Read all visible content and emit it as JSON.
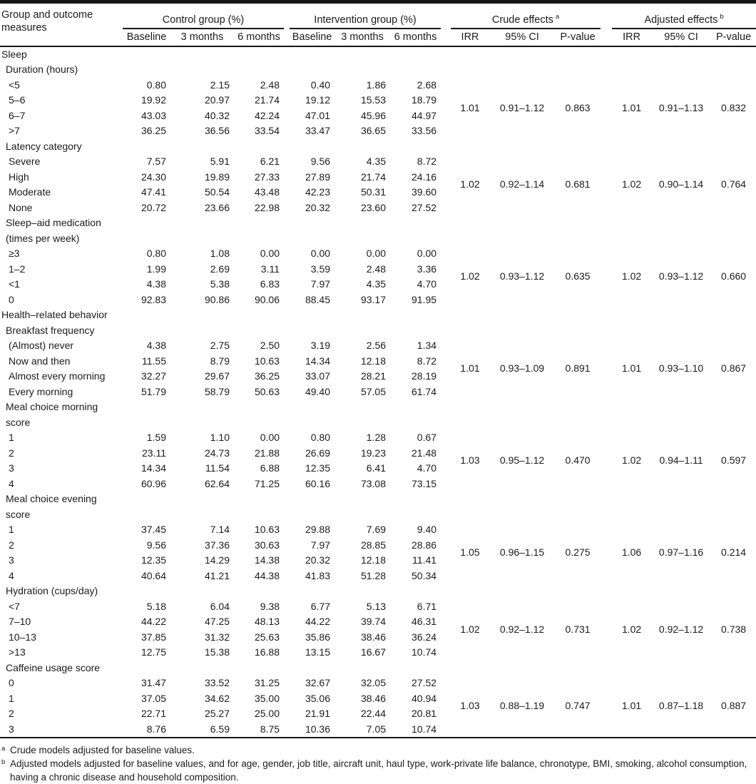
{
  "table": {
    "stub_header": "Group and outcome measures",
    "column_groups": [
      {
        "label": "Control group (%)",
        "columns": [
          "Baseline",
          "3 months",
          "6 months"
        ]
      },
      {
        "label": "Intervention group (%)",
        "columns": [
          "Baseline",
          "3 months",
          "6 months"
        ]
      },
      {
        "label": "Crude effects",
        "footnote_marker": "a",
        "columns": [
          "IRR",
          "95% CI",
          "P-value"
        ]
      },
      {
        "label": "Adjusted effects",
        "footnote_marker": "b",
        "columns": [
          "IRR",
          "95% CI",
          "P-value"
        ]
      }
    ],
    "sections": [
      {
        "title": "Sleep",
        "subgroups": [
          {
            "label": "Duration (hours)",
            "rows": [
              {
                "label": "<5",
                "control": [
                  "0.80",
                  "2.15",
                  "2.48"
                ],
                "intervention": [
                  "0.40",
                  "1.86",
                  "2.68"
                ]
              },
              {
                "label": "5–6",
                "control": [
                  "19.92",
                  "20.97",
                  "21.74"
                ],
                "intervention": [
                  "19.12",
                  "15.53",
                  "18.79"
                ]
              },
              {
                "label": "6–7",
                "control": [
                  "43.03",
                  "40.32",
                  "42.24"
                ],
                "intervention": [
                  "47.01",
                  "45.96",
                  "44.97"
                ]
              },
              {
                "label": ">7",
                "control": [
                  "36.25",
                  "36.56",
                  "33.54"
                ],
                "intervention": [
                  "33.47",
                  "36.65",
                  "33.56"
                ]
              }
            ],
            "crude": {
              "irr": "1.01",
              "ci": "0.91–1.12",
              "p": "0.863"
            },
            "adjusted": {
              "irr": "1.01",
              "ci": "0.91–1.13",
              "p": "0.832"
            }
          },
          {
            "label": "Latency category",
            "rows": [
              {
                "label": "Severe",
                "control": [
                  "7.57",
                  "5.91",
                  "6.21"
                ],
                "intervention": [
                  "9.56",
                  "4.35",
                  "8.72"
                ]
              },
              {
                "label": "High",
                "control": [
                  "24.30",
                  "19.89",
                  "27.33"
                ],
                "intervention": [
                  "27.89",
                  "21.74",
                  "24.16"
                ]
              },
              {
                "label": "Moderate",
                "control": [
                  "47.41",
                  "50.54",
                  "43.48"
                ],
                "intervention": [
                  "42.23",
                  "50.31",
                  "39.60"
                ]
              },
              {
                "label": "None",
                "control": [
                  "20.72",
                  "23.66",
                  "22.98"
                ],
                "intervention": [
                  "20.32",
                  "23.60",
                  "27.52"
                ]
              }
            ],
            "crude": {
              "irr": "1.02",
              "ci": "0.92–1.14",
              "p": "0.681"
            },
            "adjusted": {
              "irr": "1.02",
              "ci": "0.90–1.14",
              "p": "0.764"
            }
          },
          {
            "label": "Sleep–aid medication (times per week)",
            "rows": [
              {
                "label": "≥3",
                "control": [
                  "0.80",
                  "1.08",
                  "0.00"
                ],
                "intervention": [
                  "0.00",
                  "0.00",
                  "0.00"
                ]
              },
              {
                "label": "1–2",
                "control": [
                  "1.99",
                  "2.69",
                  "3.11"
                ],
                "intervention": [
                  "3.59",
                  "2.48",
                  "3.36"
                ]
              },
              {
                "label": "<1",
                "control": [
                  "4.38",
                  "5.38",
                  "6.83"
                ],
                "intervention": [
                  "7.97",
                  "4.35",
                  "4.70"
                ]
              },
              {
                "label": "0",
                "control": [
                  "92.83",
                  "90.86",
                  "90.06"
                ],
                "intervention": [
                  "88.45",
                  "93.17",
                  "91.95"
                ]
              }
            ],
            "crude": {
              "irr": "1.02",
              "ci": "0.93–1.12",
              "p": "0.635"
            },
            "adjusted": {
              "irr": "1.02",
              "ci": "0.93–1.12",
              "p": "0.660"
            }
          }
        ]
      },
      {
        "title": "Health–related behavior",
        "subgroups": [
          {
            "label": "Breakfast frequency",
            "rows": [
              {
                "label": "(Almost) never",
                "control": [
                  "4.38",
                  "2.75",
                  "2.50"
                ],
                "intervention": [
                  "3.19",
                  "2.56",
                  "1.34"
                ]
              },
              {
                "label": "Now and then",
                "control": [
                  "11.55",
                  "8.79",
                  "10.63"
                ],
                "intervention": [
                  "14.34",
                  "12.18",
                  "8.72"
                ]
              },
              {
                "label": "Almost every morning",
                "control": [
                  "32.27",
                  "29.67",
                  "36.25"
                ],
                "intervention": [
                  "33.07",
                  "28.21",
                  "28.19"
                ]
              },
              {
                "label": "Every morning",
                "control": [
                  "51.79",
                  "58.79",
                  "50.63"
                ],
                "intervention": [
                  "49.40",
                  "57.05",
                  "61.74"
                ]
              }
            ],
            "crude": {
              "irr": "1.01",
              "ci": "0.93–1.09",
              "p": "0.891"
            },
            "adjusted": {
              "irr": "1.01",
              "ci": "0.93–1.10",
              "p": "0.867"
            }
          },
          {
            "label": "Meal choice morning score",
            "rows": [
              {
                "label": "1",
                "control": [
                  "1.59",
                  "1.10",
                  "0.00"
                ],
                "intervention": [
                  "0.80",
                  "1.28",
                  "0.67"
                ]
              },
              {
                "label": "2",
                "control": [
                  "23.11",
                  "24.73",
                  "21.88"
                ],
                "intervention": [
                  "26.69",
                  "19.23",
                  "21.48"
                ]
              },
              {
                "label": "3",
                "control": [
                  "14.34",
                  "11.54",
                  "6.88"
                ],
                "intervention": [
                  "12.35",
                  "6.41",
                  "4.70"
                ]
              },
              {
                "label": "4",
                "control": [
                  "60.96",
                  "62.64",
                  "71.25"
                ],
                "intervention": [
                  "60.16",
                  "73.08",
                  "73.15"
                ]
              }
            ],
            "crude": {
              "irr": "1.03",
              "ci": "0.95–1.12",
              "p": "0.470"
            },
            "adjusted": {
              "irr": "1.02",
              "ci": "0.94–1.11",
              "p": "0.597"
            }
          },
          {
            "label": "Meal choice evening score",
            "rows": [
              {
                "label": "1",
                "control": [
                  "37.45",
                  "7.14",
                  "10.63"
                ],
                "intervention": [
                  "29.88",
                  "7.69",
                  "9.40"
                ]
              },
              {
                "label": "2",
                "control": [
                  "9.56",
                  "37.36",
                  "30.63"
                ],
                "intervention": [
                  "7.97",
                  "28.85",
                  "28.86"
                ]
              },
              {
                "label": "3",
                "control": [
                  "12.35",
                  "14.29",
                  "14.38"
                ],
                "intervention": [
                  "20.32",
                  "12.18",
                  "11.41"
                ]
              },
              {
                "label": "4",
                "control": [
                  "40.64",
                  "41.21",
                  "44.38"
                ],
                "intervention": [
                  "41.83",
                  "51.28",
                  "50.34"
                ]
              }
            ],
            "crude": {
              "irr": "1.05",
              "ci": "0.96–1.15",
              "p": "0.275"
            },
            "adjusted": {
              "irr": "1.06",
              "ci": "0.97–1.16",
              "p": "0.214"
            }
          },
          {
            "label": "Hydration (cups/day)",
            "rows": [
              {
                "label": "<7",
                "control": [
                  "5.18",
                  "6.04",
                  "9.38"
                ],
                "intervention": [
                  "6.77",
                  "5.13",
                  "6.71"
                ]
              },
              {
                "label": "7–10",
                "control": [
                  "44.22",
                  "47.25",
                  "48.13"
                ],
                "intervention": [
                  "44.22",
                  "39.74",
                  "46.31"
                ]
              },
              {
                "label": "10–13",
                "control": [
                  "37.85",
                  "31.32",
                  "25.63"
                ],
                "intervention": [
                  "35.86",
                  "38.46",
                  "36.24"
                ]
              },
              {
                "label": ">13",
                "control": [
                  "12.75",
                  "15.38",
                  "16.88"
                ],
                "intervention": [
                  "13.15",
                  "16.67",
                  "10.74"
                ]
              }
            ],
            "crude": {
              "irr": "1.02",
              "ci": "0.92–1.12",
              "p": "0.731"
            },
            "adjusted": {
              "irr": "1.02",
              "ci": "0.92–1.12",
              "p": "0.738"
            }
          },
          {
            "label": "Caffeine usage score",
            "rows": [
              {
                "label": "0",
                "control": [
                  "31.47",
                  "33.52",
                  "31.25"
                ],
                "intervention": [
                  "32.67",
                  "32.05",
                  "27.52"
                ]
              },
              {
                "label": "1",
                "control": [
                  "37.05",
                  "34.62",
                  "35.00"
                ],
                "intervention": [
                  "35.06",
                  "38.46",
                  "40.94"
                ]
              },
              {
                "label": "2",
                "control": [
                  "22.71",
                  "25.27",
                  "25.00"
                ],
                "intervention": [
                  "21.91",
                  "22.44",
                  "20.81"
                ]
              },
              {
                "label": "3",
                "control": [
                  "8.76",
                  "6.59",
                  "8.75"
                ],
                "intervention": [
                  "10.36",
                  "7.05",
                  "10.74"
                ]
              }
            ],
            "crude": {
              "irr": "1.03",
              "ci": "0.88–1.19",
              "p": "0.747"
            },
            "adjusted": {
              "irr": "1.01",
              "ci": "0.87–1.18",
              "p": "0.887"
            }
          }
        ]
      }
    ],
    "footnotes": [
      {
        "marker": "a",
        "text": "Crude models adjusted for baseline values."
      },
      {
        "marker": "b",
        "text": "Adjusted models adjusted for baseline values, and for age, gender, job title, aircraft unit, haul type, work-private life balance, chronotype, BMI, smoking, alcohol consumption, having a chronic disease and household composition."
      }
    ]
  }
}
